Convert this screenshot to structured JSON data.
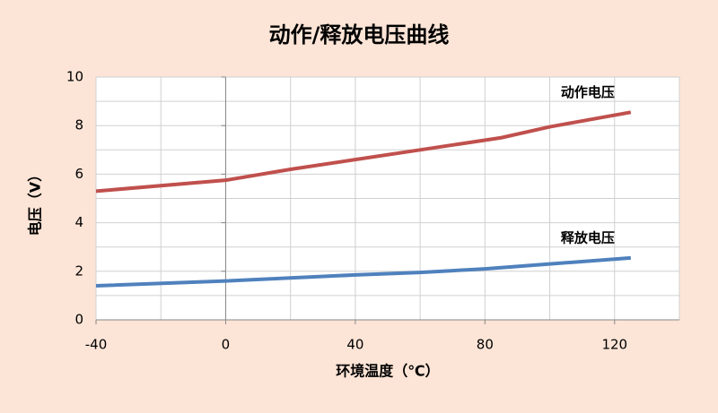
{
  "chart_data": {
    "type": "line",
    "title": "动作/释放电压曲线",
    "xlabel": "环境温度（℃）",
    "ylabel": "电压（V）",
    "xlim": [
      -40,
      140
    ],
    "xticks": [
      -40,
      0,
      40,
      80,
      120
    ],
    "xgrid": [
      -40,
      -20,
      0,
      20,
      40,
      60,
      80,
      100,
      120,
      140
    ],
    "ylim": [
      0,
      10
    ],
    "yticks": [
      0,
      2,
      4,
      6,
      8,
      10
    ],
    "ygrid": [
      0,
      1,
      2,
      3,
      4,
      5,
      6,
      7,
      8,
      9,
      10
    ],
    "grid": true,
    "series": [
      {
        "name": "动作电压",
        "color": "#c0504d",
        "x": [
          -40,
          0,
          20,
          40,
          60,
          85,
          100,
          125
        ],
        "values": [
          5.3,
          5.75,
          6.2,
          6.6,
          7.0,
          7.5,
          7.95,
          8.55
        ]
      },
      {
        "name": "释放电压",
        "color": "#4f81bd",
        "x": [
          -40,
          0,
          40,
          60,
          80,
          100,
          125
        ],
        "values": [
          1.4,
          1.6,
          1.85,
          1.95,
          2.1,
          2.3,
          2.55
        ]
      }
    ]
  }
}
